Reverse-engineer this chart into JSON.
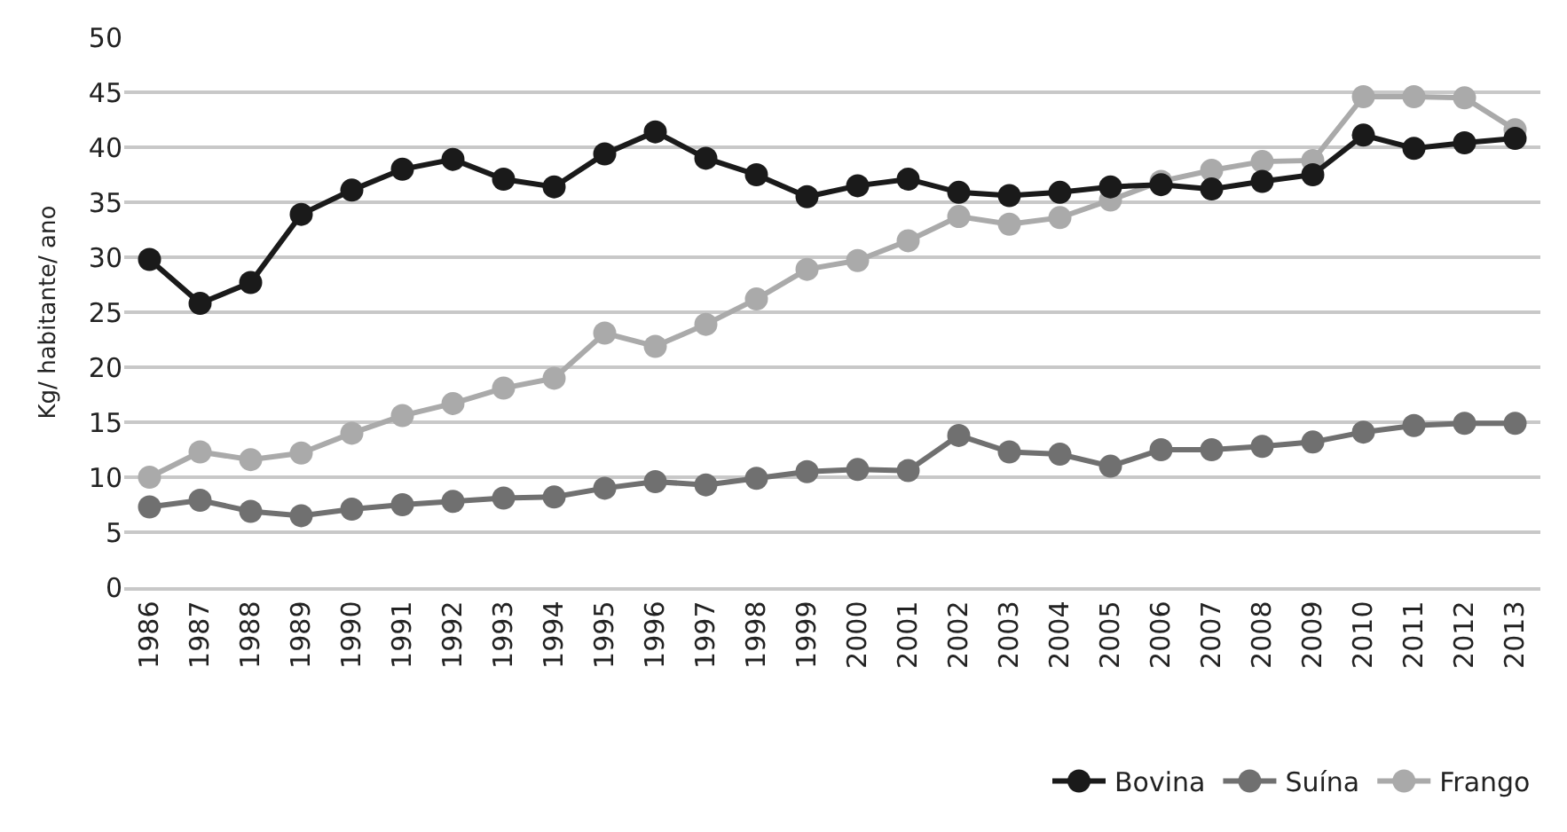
{
  "chart_data": {
    "type": "line",
    "ylabel": "Kg/ habitante/ ano",
    "categories": [
      "1986",
      "1987",
      "1988",
      "1989",
      "1990",
      "1991",
      "1992",
      "1993",
      "1994",
      "1995",
      "1996",
      "1997",
      "1998",
      "1999",
      "2000",
      "2001",
      "2002",
      "2003",
      "2004",
      "2005",
      "2006",
      "2007",
      "2008",
      "2009",
      "2010",
      "2011",
      "2012",
      "2013"
    ],
    "series": [
      {
        "name": "Bovina",
        "color": "#1a1a1a",
        "values": [
          29.8,
          25.8,
          27.7,
          33.9,
          36.1,
          38.0,
          38.9,
          37.1,
          36.4,
          39.4,
          41.4,
          39.0,
          37.5,
          35.5,
          36.5,
          37.1,
          35.9,
          35.6,
          35.9,
          36.4,
          36.6,
          36.2,
          36.9,
          37.5,
          41.1,
          39.9,
          40.4,
          40.8
        ]
      },
      {
        "name": "Suína",
        "color": "#707070",
        "values": [
          7.3,
          7.9,
          6.9,
          6.5,
          7.1,
          7.5,
          7.8,
          8.1,
          8.2,
          9.0,
          9.6,
          9.3,
          9.9,
          10.5,
          10.7,
          10.6,
          13.8,
          12.3,
          12.1,
          11.0,
          12.5,
          12.5,
          12.8,
          13.2,
          14.1,
          14.7,
          14.9,
          14.9
        ]
      },
      {
        "name": "Frango",
        "color": "#aaaaaa",
        "values": [
          10.0,
          12.3,
          11.6,
          12.2,
          14.0,
          15.6,
          16.7,
          18.1,
          19.0,
          23.1,
          21.9,
          23.9,
          26.2,
          28.9,
          29.7,
          31.5,
          33.7,
          33.0,
          33.6,
          35.2,
          36.9,
          37.9,
          38.7,
          38.8,
          44.6,
          44.6,
          44.5,
          41.6
        ]
      }
    ],
    "ylim": [
      0,
      50
    ],
    "yticks": [
      0,
      5,
      10,
      15,
      20,
      25,
      30,
      35,
      40,
      45,
      50
    ],
    "grid": "y",
    "legend": "bottom right",
    "marker": "circle",
    "line_style": "solid"
  }
}
